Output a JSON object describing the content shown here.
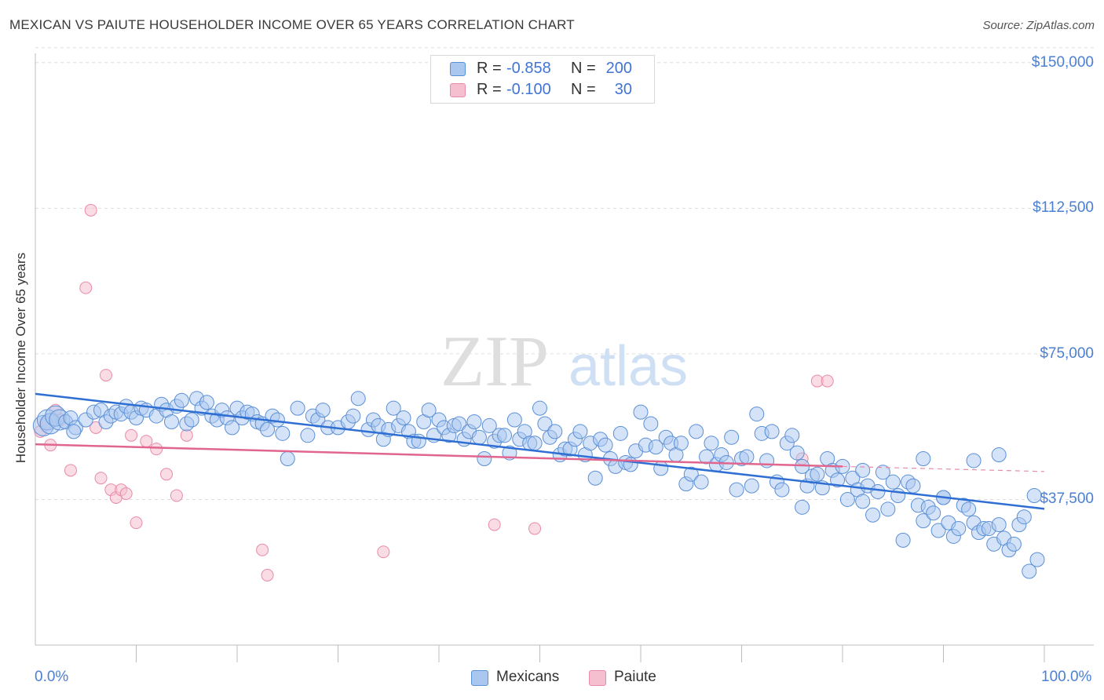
{
  "title": "MEXICAN VS PAIUTE HOUSEHOLDER INCOME OVER 65 YEARS CORRELATION CHART",
  "source": "Source: ZipAtlas.com",
  "watermark": {
    "zip": "ZIP",
    "atlas": "atlas"
  },
  "colors": {
    "mexicans_fill": "#a9c7ef",
    "mexicans_stroke": "#5b8fd6",
    "mexicans_line": "#2f6fd3",
    "paiute_fill": "#f6bfd0",
    "paiute_stroke": "#e88aa8",
    "paiute_line": "#e0668f",
    "grid": "#dddddd",
    "tick_text": "#4a7fd4"
  },
  "legend": {
    "rows": [
      {
        "r_label": "R =",
        "r_value": "-0.858",
        "n_label": "N =",
        "n_value": "200"
      },
      {
        "r_label": "R =",
        "r_value": "-0.100",
        "n_label": "N =",
        "n_value": "30"
      }
    ]
  },
  "bottom_legend": {
    "mexicans": "Mexicans",
    "paiute": "Paiute"
  },
  "chart_data": {
    "type": "scatter",
    "ylabel": "Householder Income Over 65 years",
    "xlim": [
      0,
      100
    ],
    "ylim": [
      0,
      154000
    ],
    "x_ticks": [
      "0.0%",
      "100.0%"
    ],
    "y_ticks": [
      {
        "value": 37500,
        "label": "$37,500"
      },
      {
        "value": 75000,
        "label": "$75,000"
      },
      {
        "value": 112500,
        "label": "$112,500"
      },
      {
        "value": 150000,
        "label": "$150,000"
      }
    ],
    "grid": true,
    "legend_position": "top-center",
    "series": [
      {
        "name": "Mexicans",
        "trend": {
          "x0": 0,
          "y0": 64700,
          "x1": 100,
          "y1": 35100
        },
        "points": [
          [
            0.8,
            56500
          ],
          [
            1.2,
            58000
          ],
          [
            1.5,
            57000
          ],
          [
            2,
            59000
          ],
          [
            2.4,
            58000
          ],
          [
            3,
            57500
          ],
          [
            3.5,
            58500
          ],
          [
            4,
            56000
          ],
          [
            3.8,
            55000
          ],
          [
            5,
            58000
          ],
          [
            5.8,
            60000
          ],
          [
            6.5,
            60500
          ],
          [
            7,
            57500
          ],
          [
            7.5,
            59000
          ],
          [
            8,
            60000
          ],
          [
            8.5,
            59500
          ],
          [
            9,
            61500
          ],
          [
            9.5,
            60000
          ],
          [
            10,
            58500
          ],
          [
            10.5,
            61000
          ],
          [
            11,
            60500
          ],
          [
            12,
            59000
          ],
          [
            12.5,
            62000
          ],
          [
            13,
            60500
          ],
          [
            13.5,
            57500
          ],
          [
            14,
            61500
          ],
          [
            14.5,
            63000
          ],
          [
            15,
            57000
          ],
          [
            15.5,
            58000
          ],
          [
            16,
            63500
          ],
          [
            16.5,
            61000
          ],
          [
            17,
            62500
          ],
          [
            17.5,
            59000
          ],
          [
            18,
            58000
          ],
          [
            18.5,
            60500
          ],
          [
            19,
            58500
          ],
          [
            19.5,
            56000
          ],
          [
            20,
            61000
          ],
          [
            20.5,
            58500
          ],
          [
            21,
            60000
          ],
          [
            21.5,
            59500
          ],
          [
            22,
            57500
          ],
          [
            22.5,
            57000
          ],
          [
            23,
            55500
          ],
          [
            23.5,
            59000
          ],
          [
            24,
            58000
          ],
          [
            24.5,
            54500
          ],
          [
            25,
            48000
          ],
          [
            26,
            61000
          ],
          [
            27,
            54000
          ],
          [
            27.5,
            59000
          ],
          [
            28,
            58000
          ],
          [
            28.5,
            60500
          ],
          [
            29,
            56000
          ],
          [
            30,
            56000
          ],
          [
            31,
            57500
          ],
          [
            31.5,
            59000
          ],
          [
            32,
            63500
          ],
          [
            33,
            55500
          ],
          [
            33.5,
            58000
          ],
          [
            34,
            56500
          ],
          [
            34.5,
            53000
          ],
          [
            35,
            55500
          ],
          [
            35.5,
            61000
          ],
          [
            36,
            56500
          ],
          [
            36.5,
            58500
          ],
          [
            37,
            55000
          ],
          [
            37.5,
            52500
          ],
          [
            38,
            52500
          ],
          [
            38.5,
            57500
          ],
          [
            39,
            60500
          ],
          [
            39.5,
            54000
          ],
          [
            40,
            58000
          ],
          [
            40.5,
            56000
          ],
          [
            41,
            54000
          ],
          [
            41.5,
            56500
          ],
          [
            42,
            57000
          ],
          [
            42.5,
            53000
          ],
          [
            43,
            55000
          ],
          [
            43.5,
            57500
          ],
          [
            44,
            53500
          ],
          [
            44.5,
            48000
          ],
          [
            45,
            56500
          ],
          [
            45.5,
            52500
          ],
          [
            46,
            54000
          ],
          [
            46.5,
            54000
          ],
          [
            47,
            49500
          ],
          [
            47.5,
            58000
          ],
          [
            48,
            53000
          ],
          [
            48.5,
            55000
          ],
          [
            49,
            52000
          ],
          [
            49.5,
            52000
          ],
          [
            50,
            61000
          ],
          [
            50.5,
            57000
          ],
          [
            51,
            53500
          ],
          [
            51.5,
            55000
          ],
          [
            52,
            49000
          ],
          [
            52.5,
            50500
          ],
          [
            53,
            50500
          ],
          [
            53.5,
            53000
          ],
          [
            54,
            55000
          ],
          [
            54.5,
            49000
          ],
          [
            55,
            52000
          ],
          [
            55.5,
            43000
          ],
          [
            56,
            53000
          ],
          [
            56.5,
            51500
          ],
          [
            57,
            48000
          ],
          [
            57.5,
            46000
          ],
          [
            58,
            54500
          ],
          [
            58.5,
            47000
          ],
          [
            59,
            46500
          ],
          [
            59.5,
            50000
          ],
          [
            60,
            60000
          ],
          [
            60.5,
            51500
          ],
          [
            61,
            57000
          ],
          [
            61.5,
            51000
          ],
          [
            62,
            45500
          ],
          [
            62.5,
            53500
          ],
          [
            63,
            52000
          ],
          [
            63.5,
            49000
          ],
          [
            64,
            52000
          ],
          [
            64.5,
            41500
          ],
          [
            65,
            44000
          ],
          [
            65.5,
            55000
          ],
          [
            66,
            42000
          ],
          [
            66.5,
            48500
          ],
          [
            67,
            52000
          ],
          [
            67.5,
            46500
          ],
          [
            68,
            49000
          ],
          [
            68.5,
            47000
          ],
          [
            69,
            53500
          ],
          [
            69.5,
            40000
          ],
          [
            70,
            48000
          ],
          [
            70.5,
            48500
          ],
          [
            71,
            41000
          ],
          [
            71.5,
            59500
          ],
          [
            72,
            54500
          ],
          [
            72.5,
            47500
          ],
          [
            73,
            55000
          ],
          [
            73.5,
            42000
          ],
          [
            74,
            40000
          ],
          [
            74.5,
            52000
          ],
          [
            75,
            54000
          ],
          [
            75.5,
            49500
          ],
          [
            76,
            46000
          ],
          [
            76.5,
            41000
          ],
          [
            77,
            43500
          ],
          [
            77.5,
            44000
          ],
          [
            78,
            40500
          ],
          [
            78.5,
            48000
          ],
          [
            79,
            45000
          ],
          [
            79.5,
            42500
          ],
          [
            80,
            46000
          ],
          [
            80.5,
            37500
          ],
          [
            81,
            43000
          ],
          [
            81.5,
            40000
          ],
          [
            82,
            45000
          ],
          [
            82.5,
            41000
          ],
          [
            83,
            33500
          ],
          [
            83.5,
            39500
          ],
          [
            84,
            44500
          ],
          [
            84.5,
            35000
          ],
          [
            85,
            42000
          ],
          [
            85.5,
            38500
          ],
          [
            86,
            27000
          ],
          [
            86.5,
            42000
          ],
          [
            87,
            41000
          ],
          [
            87.5,
            36000
          ],
          [
            88,
            32000
          ],
          [
            88.5,
            35500
          ],
          [
            89,
            34000
          ],
          [
            89.5,
            29500
          ],
          [
            90,
            38000
          ],
          [
            90.5,
            31500
          ],
          [
            91,
            28000
          ],
          [
            91.5,
            30000
          ],
          [
            92,
            36000
          ],
          [
            92.5,
            35000
          ],
          [
            93,
            31500
          ],
          [
            93.5,
            29000
          ],
          [
            94,
            30000
          ],
          [
            94.5,
            30000
          ],
          [
            95,
            26000
          ],
          [
            95.5,
            31000
          ],
          [
            96,
            27500
          ],
          [
            96.5,
            24500
          ],
          [
            97,
            26000
          ],
          [
            97.5,
            31000
          ],
          [
            98,
            33000
          ],
          [
            98.5,
            19000
          ],
          [
            99,
            38500
          ],
          [
            99.3,
            22000
          ],
          [
            88,
            48000
          ],
          [
            93,
            47500
          ],
          [
            95.5,
            49000
          ],
          [
            90,
            38000
          ],
          [
            82,
            37000
          ],
          [
            76,
            35500
          ]
        ],
        "sizes_note": "first five points drawn larger"
      },
      {
        "name": "Paiute",
        "trend": {
          "x0": 0,
          "y0": 51700,
          "x1": 80,
          "y1": 46000,
          "dashed_to_x": 100,
          "dashed_to_y": 44700
        },
        "points": [
          [
            0.5,
            55000
          ],
          [
            1.0,
            57000
          ],
          [
            1.5,
            51500
          ],
          [
            2,
            60500
          ],
          [
            2.5,
            58000
          ],
          [
            3.5,
            45000
          ],
          [
            5,
            92000
          ],
          [
            5.5,
            112000
          ],
          [
            6,
            56000
          ],
          [
            6.5,
            43000
          ],
          [
            7,
            69500
          ],
          [
            7.5,
            40000
          ],
          [
            8,
            38000
          ],
          [
            8.5,
            40000
          ],
          [
            9,
            39000
          ],
          [
            9.5,
            54000
          ],
          [
            10,
            31500
          ],
          [
            11,
            52500
          ],
          [
            12,
            50500
          ],
          [
            13,
            44000
          ],
          [
            14,
            38500
          ],
          [
            15,
            54000
          ],
          [
            22.5,
            24500
          ],
          [
            23,
            18000
          ],
          [
            34.5,
            24000
          ],
          [
            45.5,
            31000
          ],
          [
            49.5,
            30000
          ],
          [
            76,
            48000
          ],
          [
            77.5,
            68000
          ],
          [
            78.5,
            68000
          ]
        ]
      }
    ]
  }
}
